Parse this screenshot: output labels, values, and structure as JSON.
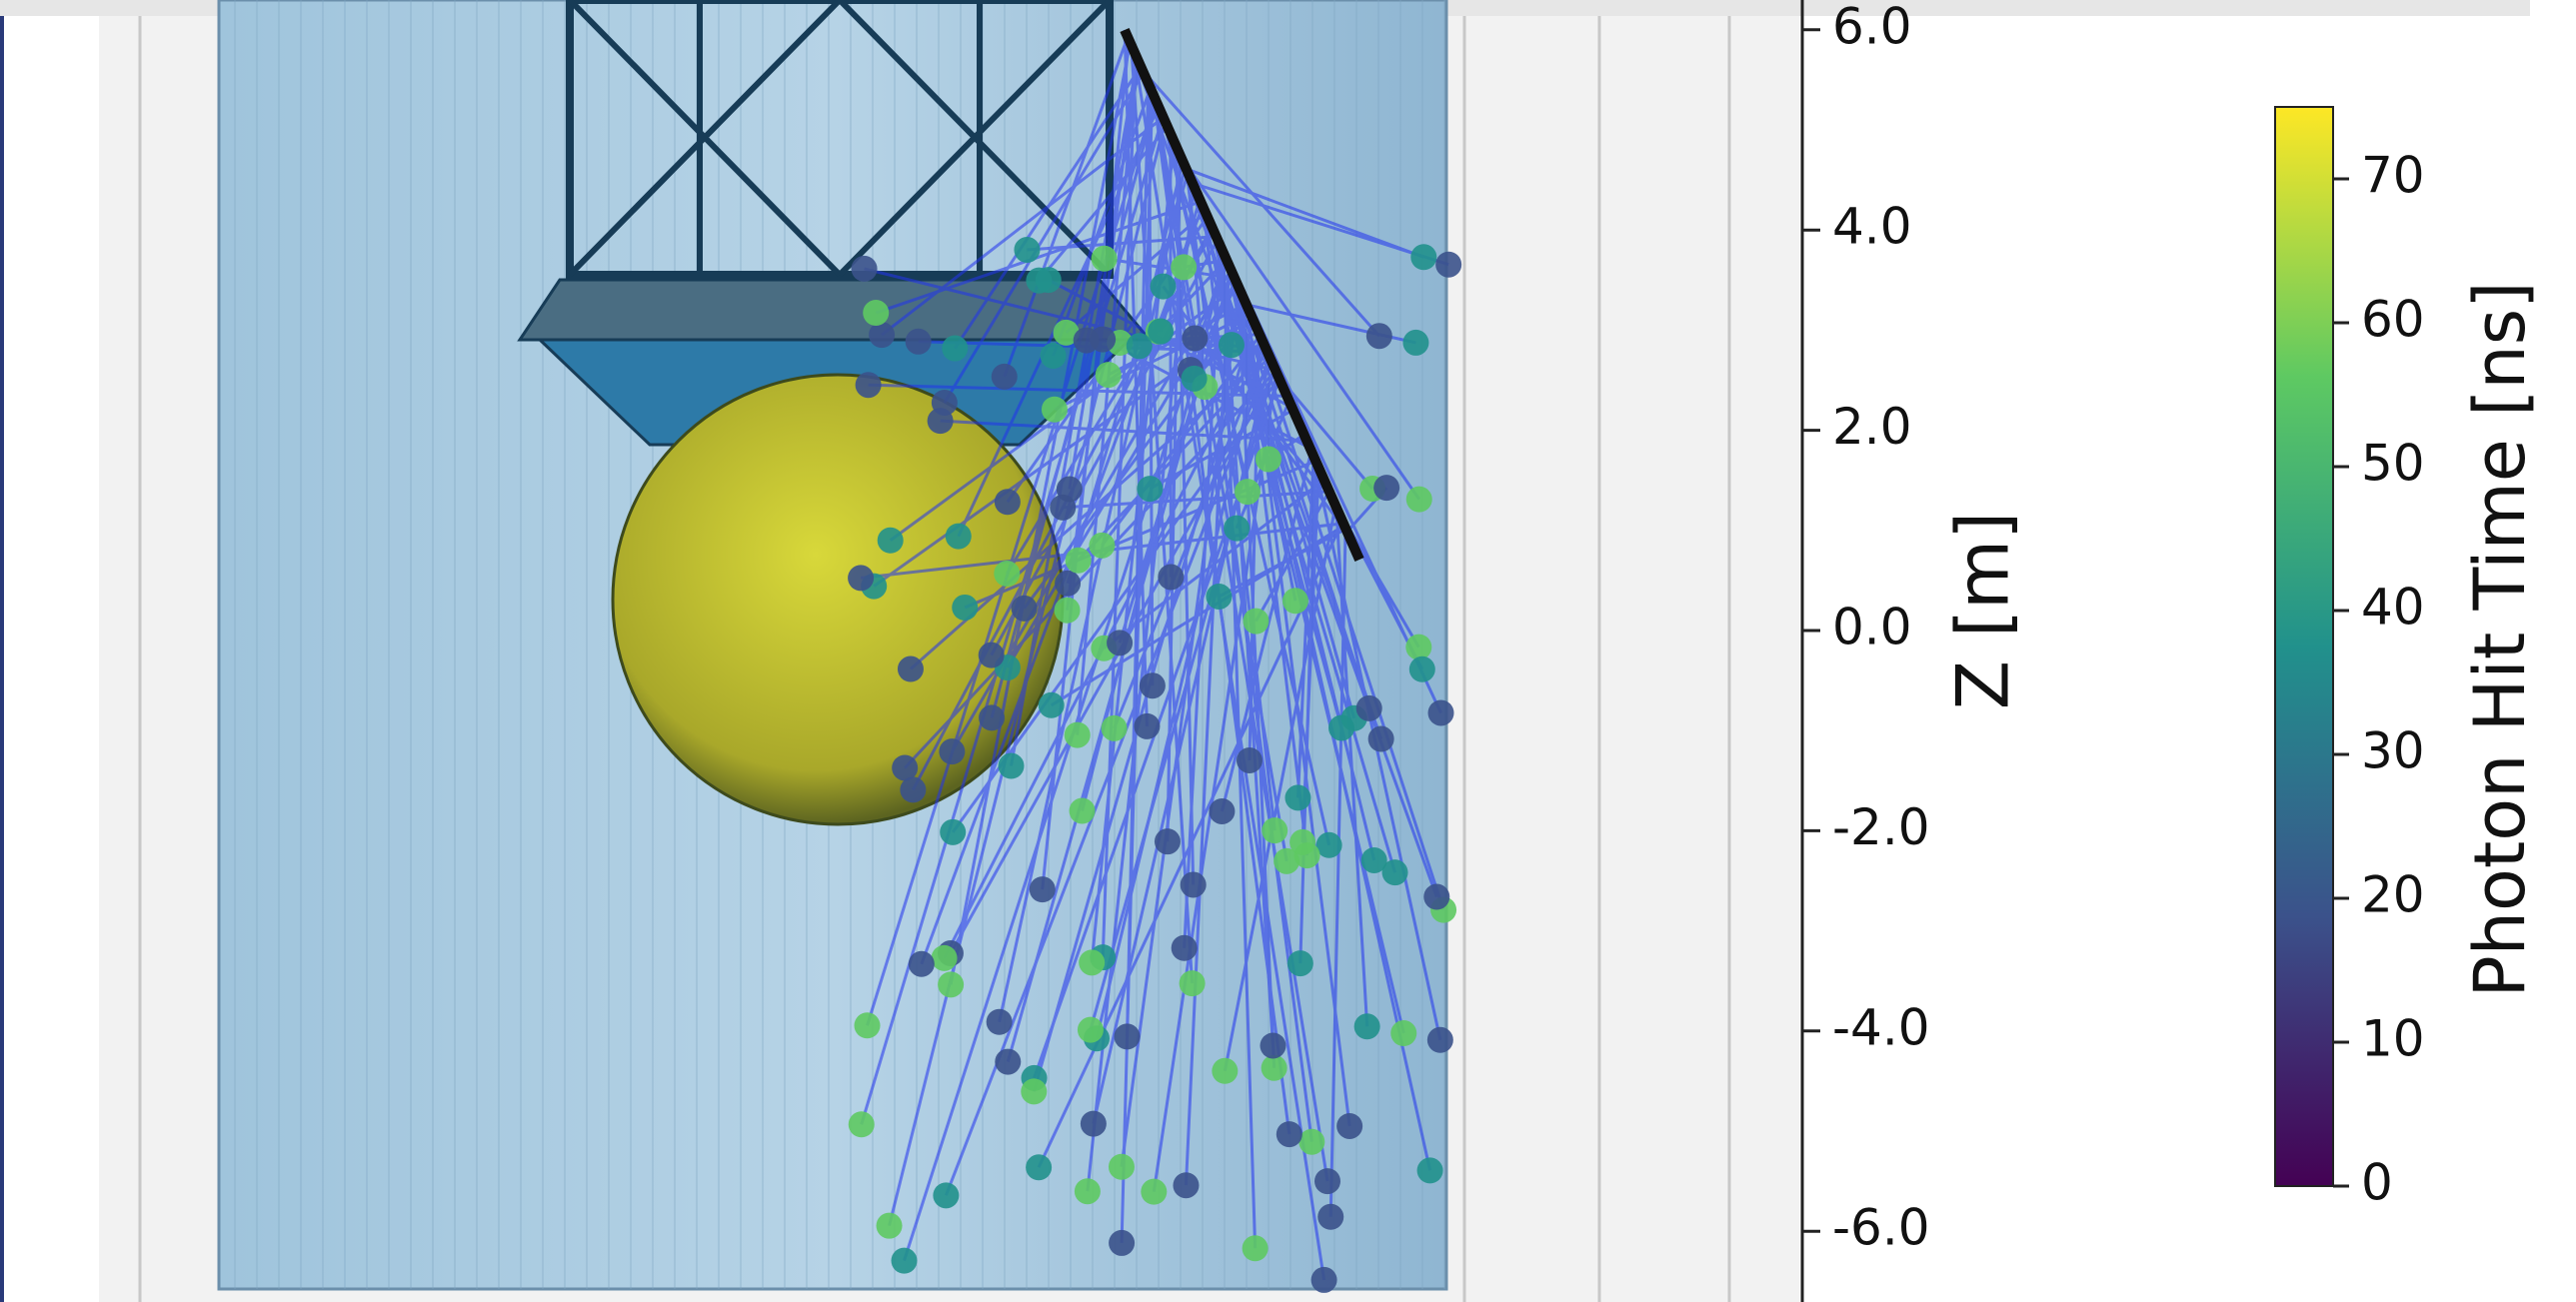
{
  "chart_data": {
    "type": "detector-event",
    "zaxis": {
      "label": "Z [m]",
      "lim": [
        -6.2,
        6.3
      ],
      "ticks": [
        {
          "value": 6,
          "label": "6.0"
        },
        {
          "value": 4,
          "label": "4.0"
        },
        {
          "value": 2,
          "label": "2.0"
        },
        {
          "value": 0,
          "label": "0.0"
        },
        {
          "value": -2,
          "label": "-2.0"
        },
        {
          "value": -4,
          "label": "-4.0"
        },
        {
          "value": -6,
          "label": "-6.0"
        }
      ]
    },
    "colorbar": {
      "label": "Photon Hit Time [ns]",
      "lim": [
        0,
        75
      ],
      "ticks": [
        0,
        10,
        20,
        30,
        40,
        50,
        60,
        70
      ],
      "colormap": [
        "#440154",
        "#3b528b",
        "#21918c",
        "#5ec962",
        "#fde725"
      ]
    }
  }
}
